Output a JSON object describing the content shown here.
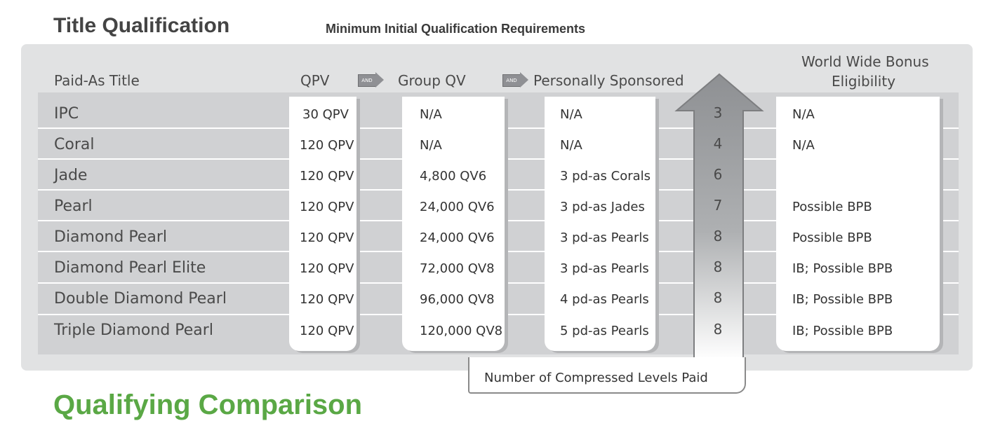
{
  "page": {
    "title": "Title Qualification",
    "subtitle": "Minimum Initial Qualification Requirements",
    "partial_heading": "Qualifying Comparison"
  },
  "headers": {
    "title": "Paid-As Title",
    "qpv": "QPV",
    "group_qv": "Group QV",
    "personally_sponsored": "Personally Sponsored",
    "wwb_line1": "World Wide Bonus",
    "wwb_line2": "Eligibility",
    "and_label": "AND"
  },
  "rows": [
    {
      "title": "IPC",
      "qpv": "30 QPV",
      "group_qv": "N/A",
      "sponsored": "N/A",
      "levels": "3",
      "wwb": "N/A"
    },
    {
      "title": "Coral",
      "qpv": "120 QPV",
      "group_qv": "N/A",
      "sponsored": "N/A",
      "levels": "4",
      "wwb": "N/A"
    },
    {
      "title": "Jade",
      "qpv": "120 QPV",
      "group_qv": "4,800 QV6",
      "sponsored": "3 pd-as Corals",
      "levels": "6",
      "wwb": ""
    },
    {
      "title": "Pearl",
      "qpv": "120 QPV",
      "group_qv": "24,000 QV6",
      "sponsored": "3 pd-as Jades",
      "levels": "7",
      "wwb": "Possible  BPB"
    },
    {
      "title": "Diamond Pearl",
      "qpv": "120 QPV",
      "group_qv": "24,000 QV6",
      "sponsored": "3 pd-as Pearls",
      "levels": "8",
      "wwb": "Possible  BPB"
    },
    {
      "title": "Diamond Pearl Elite",
      "qpv": "120 QPV",
      "group_qv": "72,000 QV8",
      "sponsored": "3 pd-as Pearls",
      "levels": "8",
      "wwb": "IB; Possible  BPB"
    },
    {
      "title": "Double Diamond Pearl",
      "qpv": "120 QPV",
      "group_qv": "96,000 QV8",
      "sponsored": "4 pd-as Pearls",
      "levels": "8",
      "wwb": "IB; Possible  BPB"
    },
    {
      "title": "Triple Diamond Pearl",
      "qpv": "120 QPV",
      "group_qv": "120,000 QV8",
      "sponsored": "5 pd-as Pearls",
      "levels": "8",
      "wwb": "IB; Possible  BPB"
    }
  ],
  "footer": {
    "levels_caption": "Number of Compressed Levels Paid"
  },
  "colors": {
    "panel": "#e1e2e3",
    "table": "#d0d1d3",
    "arrow_top": "#8e9093",
    "arrow_bottom": "#ffffff",
    "green_heading": "#5aa845"
  }
}
